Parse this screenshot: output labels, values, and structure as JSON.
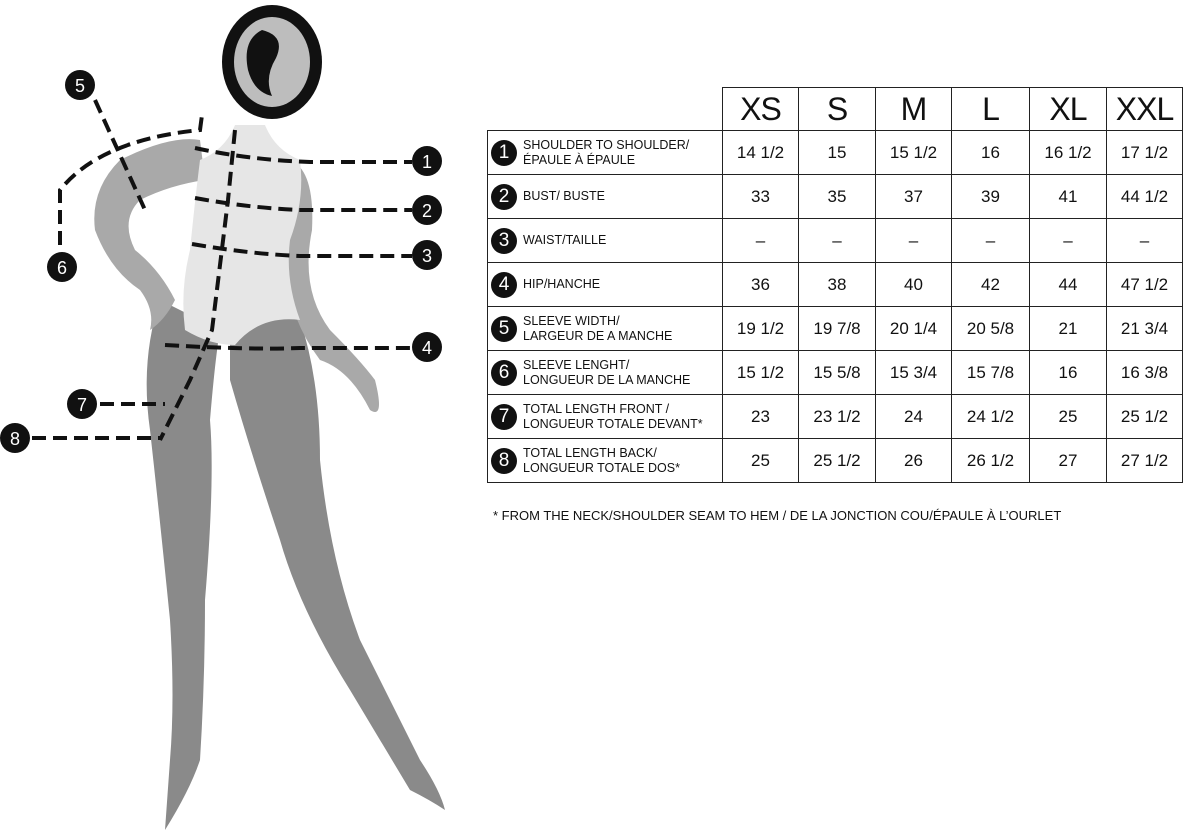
{
  "sizes": [
    "XS",
    "S",
    "M",
    "L",
    "XL",
    "XXL"
  ],
  "rows": [
    {
      "num": "1",
      "label": "SHOULDER TO SHOULDER/\nÉPAULE À ÉPAULE",
      "values": [
        "14 1/2",
        "15",
        "15 1/2",
        "16",
        "16 1/2",
        "17 1/2"
      ]
    },
    {
      "num": "2",
      "label": "BUST/ BUSTE",
      "values": [
        "33",
        "35",
        "37",
        "39",
        "41",
        "44 1/2"
      ]
    },
    {
      "num": "3",
      "label": "WAIST/TAILLE",
      "values": [
        "–",
        "–",
        "–",
        "–",
        "–",
        "–"
      ]
    },
    {
      "num": "4",
      "label": "HIP/HANCHE",
      "values": [
        "36",
        "38",
        "40",
        "42",
        "44",
        "47 1/2"
      ]
    },
    {
      "num": "5",
      "label": "SLEEVE WIDTH/\nLARGEUR DE A MANCHE",
      "values": [
        "19 1/2",
        "19 7/8",
        "20 1/4",
        "20 5/8",
        "21",
        "21 3/4"
      ]
    },
    {
      "num": "6",
      "label": "SLEEVE LENGHT/\nLONGUEUR DE LA MANCHE",
      "values": [
        "15 1/2",
        "15 5/8",
        "15 3/4",
        "15 7/8",
        "16",
        "16 3/8"
      ]
    },
    {
      "num": "7",
      "label": "TOTAL LENGTH FRONT /\nLONGUEUR TOTALE DEVANT*",
      "values": [
        "23",
        "23 1/2",
        "24",
        "24 1/2",
        "25",
        "25 1/2"
      ]
    },
    {
      "num": "8",
      "label": "TOTAL LENGTH BACK/\nLONGUEUR TOTALE DOS*",
      "values": [
        "25",
        "25 1/2",
        "26",
        "26 1/2",
        "27",
        "27 1/2"
      ]
    }
  ],
  "footnote": "*   FROM THE NECK/SHOULDER SEAM TO HEM / DE LA JONCTION COU/ÉPAULE À L’OURLET",
  "figure_markers": [
    "1",
    "2",
    "3",
    "4",
    "5",
    "6",
    "7",
    "8"
  ],
  "colors": {
    "body_dark": "#8a8a8a",
    "body_light": "#e6e6e6",
    "arm": "#a9a9a9",
    "marker": "#111111"
  }
}
